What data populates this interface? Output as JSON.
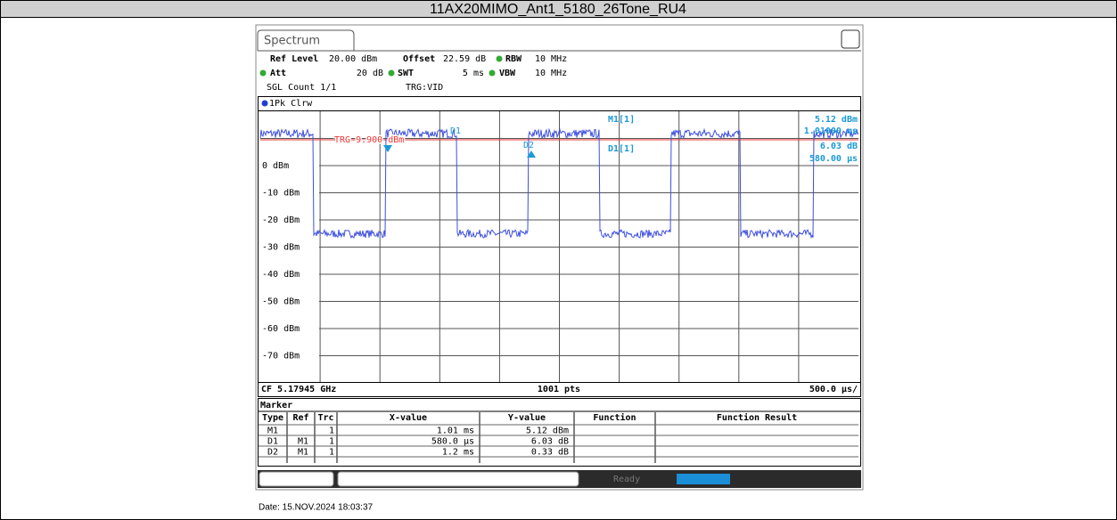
{
  "title": "11AX20MIMO_Ant1_5180_26Tone_RU4",
  "tab": "Spectrum",
  "settings": {
    "ref_level_label": "Ref Level",
    "ref_level": "20.00 dBm",
    "offset_label": "Offset",
    "offset": "22.59 dB",
    "rbw_label": "RBW",
    "rbw": "10 MHz",
    "att_label": "Att",
    "att": "20 dB",
    "swt_label": "SWT",
    "swt": "5 ms",
    "vbw_label": "VBW",
    "vbw": "10 MHz",
    "sgl_count": "SGL Count 1/1",
    "trigger": "TRG:VID"
  },
  "plot": {
    "trace_label": "1Pk Clrw",
    "y_labels": [
      "0 dBm",
      "-10 dBm",
      "-20 dBm",
      "-30 dBm",
      "-40 dBm",
      "-50 dBm",
      "-60 dBm",
      "-70 dBm"
    ],
    "trg_label": "TRG 9.900 dBm",
    "marker_d1": "D1",
    "marker_d2": "D2",
    "readout": {
      "m1": "M1[1]",
      "m1_level": "5.12 dBm",
      "m1_time": "1.01000 ms",
      "d1": "D1[1]",
      "d1_level": "6.03 dB",
      "d1_time": "580.00 µs"
    },
    "footer": {
      "cf": "CF 5.17945 GHz",
      "points": "1001 pts",
      "span": "500.0 µs/"
    }
  },
  "marker_table": {
    "title": "Marker",
    "columns": [
      "Type",
      "Ref",
      "Trc",
      "X-value",
      "Y-value",
      "Function",
      "Function Result"
    ],
    "rows": [
      {
        "type": "M1",
        "trc": "1",
        "x": "1.01 ms",
        "y": "5.12 dBm"
      },
      {
        "type": "D1",
        "ref": "M1",
        "trc": "1",
        "x": "580.0 µs",
        "y": "6.03 dB"
      },
      {
        "type": "D2",
        "ref": "M1",
        "trc": "1",
        "x": "1.2 ms",
        "y": "0.33 dB"
      }
    ]
  },
  "status": "Ready",
  "date": "Date: 15.NOV.2024 18:03:37"
}
